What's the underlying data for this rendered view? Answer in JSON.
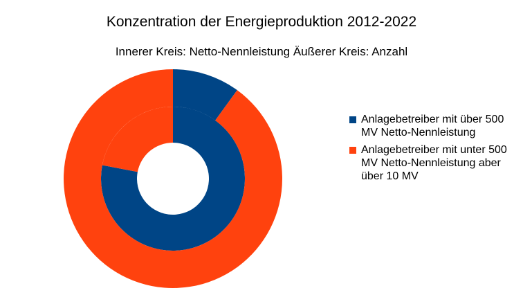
{
  "chart_data": {
    "type": "donut",
    "title": "Konzentration der Energieproduktion 2012-2022",
    "subtitle": "Innerer Kreis: Netto-Nennleistung Äußerer Kreis: Anzahl",
    "legend_position": "right",
    "categories": [
      "Anlagebetreiber mit über 500 MV Netto-Nennleistung",
      "Anlagebetreiber mit unter 500 MV Netto-Nennleistung aber über 10 MV"
    ],
    "colors": [
      "#004586",
      "#ff420e"
    ],
    "series": [
      {
        "ring": "inner",
        "label": "Netto-Nennleistung",
        "values": [
          78,
          22
        ]
      },
      {
        "ring": "outer",
        "label": "Anzahl",
        "values": [
          10,
          90
        ]
      }
    ]
  }
}
